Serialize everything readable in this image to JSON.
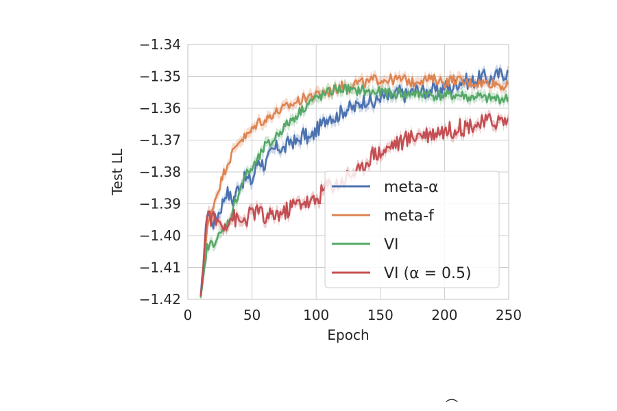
{
  "chart_data": {
    "type": "line",
    "xlabel": "Epoch",
    "ylabel": "Test LL",
    "xlim": [
      0,
      250
    ],
    "ylim": [
      -1.42,
      -1.34
    ],
    "xticks": [
      "0",
      "50",
      "100",
      "150",
      "200",
      "250"
    ],
    "yticks": [
      "−1.34",
      "−1.35",
      "−1.36",
      "−1.37",
      "−1.38",
      "−1.39",
      "−1.40",
      "−1.41",
      "−1.42"
    ],
    "grid": true,
    "legend_position": "lower-right",
    "x": [
      10,
      15,
      20,
      25,
      30,
      35,
      40,
      45,
      50,
      55,
      60,
      65,
      70,
      75,
      80,
      85,
      90,
      95,
      100,
      105,
      110,
      115,
      120,
      125,
      130,
      135,
      140,
      145,
      150,
      155,
      160,
      165,
      170,
      175,
      180,
      185,
      190,
      195,
      200,
      205,
      210,
      215,
      220,
      225,
      230,
      235,
      240,
      245,
      250
    ],
    "series": [
      {
        "name": "meta-α",
        "color": "#4c72b0",
        "values": [
          -1.42,
          -1.392,
          -1.396,
          -1.392,
          -1.386,
          -1.389,
          -1.384,
          -1.382,
          -1.383,
          -1.376,
          -1.378,
          -1.374,
          -1.372,
          -1.373,
          -1.37,
          -1.371,
          -1.368,
          -1.37,
          -1.367,
          -1.365,
          -1.362,
          -1.363,
          -1.361,
          -1.36,
          -1.36,
          -1.358,
          -1.357,
          -1.359,
          -1.356,
          -1.357,
          -1.356,
          -1.355,
          -1.356,
          -1.355,
          -1.354,
          -1.355,
          -1.354,
          -1.355,
          -1.353,
          -1.354,
          -1.352,
          -1.351,
          -1.352,
          -1.351,
          -1.35,
          -1.351,
          -1.35,
          -1.349,
          -1.349
        ]
      },
      {
        "name": "meta-f",
        "color": "#dd8452",
        "values": [
          -1.42,
          -1.398,
          -1.39,
          -1.384,
          -1.378,
          -1.374,
          -1.37,
          -1.369,
          -1.367,
          -1.364,
          -1.364,
          -1.362,
          -1.361,
          -1.36,
          -1.359,
          -1.358,
          -1.357,
          -1.356,
          -1.356,
          -1.355,
          -1.355,
          -1.354,
          -1.353,
          -1.353,
          -1.352,
          -1.352,
          -1.352,
          -1.351,
          -1.351,
          -1.351,
          -1.351,
          -1.351,
          -1.351,
          -1.352,
          -1.351,
          -1.351,
          -1.351,
          -1.351,
          -1.352,
          -1.351,
          -1.351,
          -1.352,
          -1.352,
          -1.352,
          -1.352,
          -1.352,
          -1.352,
          -1.353,
          -1.353
        ]
      },
      {
        "name": "VI",
        "color": "#55a868",
        "values": [
          -1.42,
          -1.404,
          -1.402,
          -1.4,
          -1.397,
          -1.392,
          -1.386,
          -1.381,
          -1.379,
          -1.376,
          -1.372,
          -1.371,
          -1.368,
          -1.366,
          -1.364,
          -1.362,
          -1.36,
          -1.358,
          -1.357,
          -1.356,
          -1.355,
          -1.354,
          -1.354,
          -1.354,
          -1.355,
          -1.354,
          -1.355,
          -1.355,
          -1.355,
          -1.355,
          -1.356,
          -1.355,
          -1.356,
          -1.355,
          -1.356,
          -1.355,
          -1.356,
          -1.356,
          -1.356,
          -1.356,
          -1.356,
          -1.356,
          -1.357,
          -1.356,
          -1.357,
          -1.357,
          -1.357,
          -1.357,
          -1.357
        ]
      },
      {
        "name": "VI (α = 0.5)",
        "color": "#c44e52",
        "values": [
          -1.42,
          -1.393,
          -1.395,
          -1.396,
          -1.396,
          -1.394,
          -1.396,
          -1.395,
          -1.393,
          -1.392,
          -1.395,
          -1.394,
          -1.393,
          -1.393,
          -1.391,
          -1.39,
          -1.389,
          -1.39,
          -1.389,
          -1.386,
          -1.384,
          -1.384,
          -1.383,
          -1.381,
          -1.38,
          -1.38,
          -1.376,
          -1.374,
          -1.374,
          -1.373,
          -1.371,
          -1.371,
          -1.37,
          -1.369,
          -1.368,
          -1.368,
          -1.368,
          -1.367,
          -1.367,
          -1.367,
          -1.366,
          -1.366,
          -1.365,
          -1.365,
          -1.365,
          -1.364,
          -1.364,
          -1.364,
          -1.364
        ]
      }
    ]
  }
}
